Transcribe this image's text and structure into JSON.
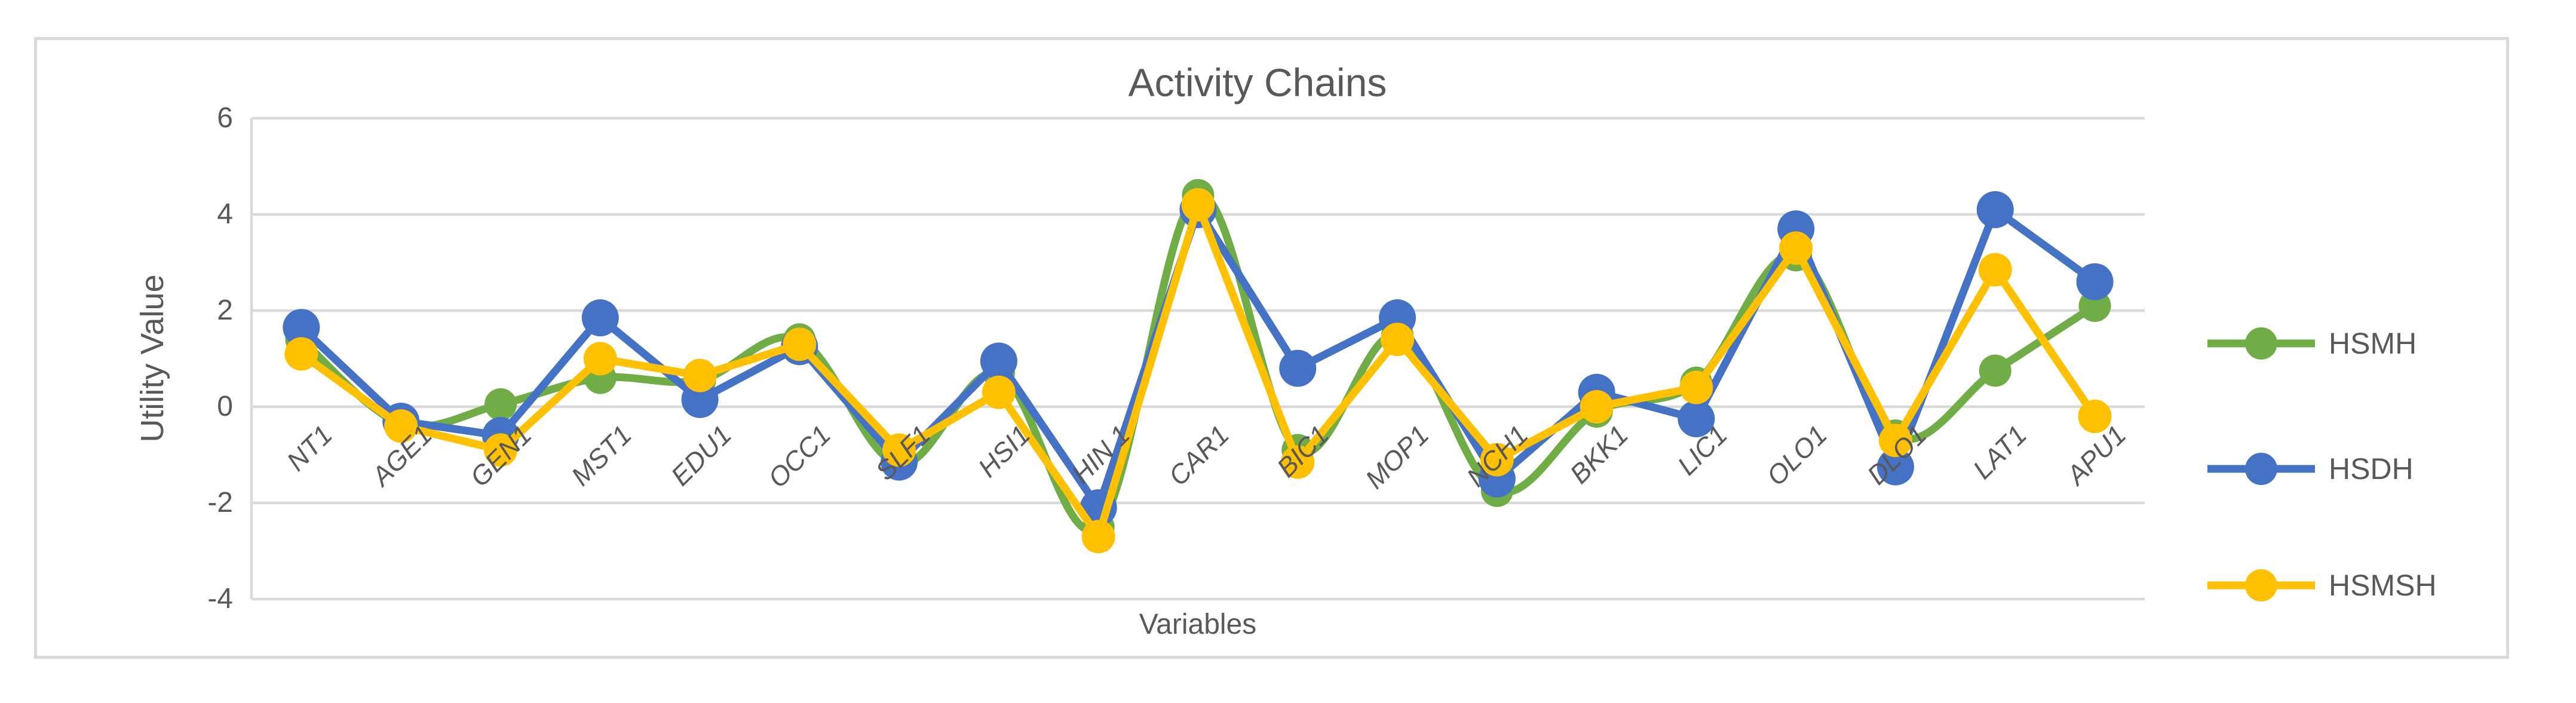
{
  "chart_data": {
    "type": "line",
    "title": "Activity Chains",
    "xlabel": "Variables",
    "ylabel": "Utility Value",
    "ylim": [
      -4,
      6
    ],
    "y_ticks": [
      6,
      4,
      2,
      0,
      -2,
      -4
    ],
    "grid": true,
    "legend_position": "right",
    "categories": [
      "NT1",
      "AGE1",
      "GEN1",
      "MST1",
      "EDU1",
      "OCC1",
      "SLF1",
      "HSI1",
      "HIN 1",
      "CAR1",
      "BIC1",
      "MOP1",
      "NCH1",
      "BKK1",
      "LIC1",
      "OLO1",
      "DLO1",
      "LAT1",
      "APU1"
    ],
    "series": [
      {
        "name": "HSMH",
        "color": "#70AD47",
        "smooth": true,
        "values": [
          1.4,
          -0.35,
          0.05,
          0.6,
          0.55,
          1.4,
          -1.2,
          0.7,
          -2.5,
          4.4,
          -0.9,
          1.5,
          -1.75,
          -0.1,
          0.5,
          3.15,
          -0.6,
          0.75,
          2.1
        ]
      },
      {
        "name": "HSDH",
        "color": "#4472C4",
        "smooth": false,
        "values": [
          1.65,
          -0.3,
          -0.6,
          1.85,
          0.15,
          1.25,
          -1.15,
          0.95,
          -2.1,
          4.1,
          0.8,
          1.85,
          -1.5,
          0.3,
          -0.25,
          3.7,
          -1.25,
          4.1,
          2.6
        ]
      },
      {
        "name": "HSMSH",
        "color": "#FFC000",
        "smooth": false,
        "values": [
          1.1,
          -0.4,
          -0.9,
          1.0,
          0.65,
          1.3,
          -0.9,
          0.3,
          -2.7,
          4.2,
          -1.15,
          1.4,
          -1.1,
          0.0,
          0.4,
          3.3,
          -0.7,
          2.85,
          -0.2
        ]
      }
    ],
    "colors": {
      "gridline": "#D9D9D9",
      "axis_line": "#D9D9D9",
      "border": "#D9D9D9",
      "text": "#595959",
      "background": "#FFFFFF"
    }
  }
}
